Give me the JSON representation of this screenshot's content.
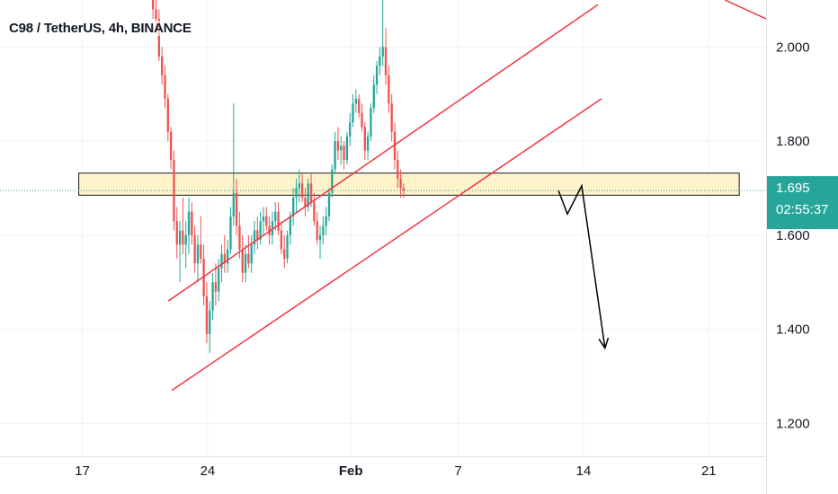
{
  "header": {
    "title": "C98 / TetherUS, 4h, BINANCE"
  },
  "colors": {
    "up": "#26a69a",
    "down": "#ef5350",
    "channel": "#f23645",
    "zone_fill": "#fff3cc",
    "zone_border": "#131722",
    "badge": "#26a69a",
    "arrow": "#000000",
    "grid": "#f0f3fa"
  },
  "chart_data": {
    "type": "candlestick",
    "symbol": "C98 / TetherUS",
    "interval": "4h",
    "exchange": "BINANCE",
    "x_axis": {
      "ticks": [
        "17",
        "24",
        "Feb",
        "7",
        "14",
        "21"
      ],
      "tick_days": [
        0,
        7,
        15,
        21,
        28,
        35
      ],
      "range_days": [
        -4.6,
        38.2
      ]
    },
    "y_axis": {
      "ticks": [
        "1.200",
        "1.400",
        "1.600",
        "1.800",
        "2.000"
      ],
      "tick_values": [
        1.2,
        1.4,
        1.6,
        1.8,
        2.0
      ],
      "range": [
        1.13,
        2.1
      ],
      "position": "right"
    },
    "last_price": {
      "value": "1.695",
      "countdown": "02:55:37",
      "price": 1.695
    },
    "support_zone": {
      "from_day": -0.2,
      "to_day": 36.7,
      "low": 1.685,
      "high": 1.732
    },
    "channel_lines": [
      {
        "name": "",
        "points": [
          [
            4.8,
            1.46
          ],
          [
            28.8,
            2.09
          ]
        ]
      },
      {
        "name": "",
        "points": [
          [
            5.0,
            1.27
          ],
          [
            29.0,
            1.89
          ]
        ]
      },
      {
        "name": "",
        "points": [
          [
            35.9,
            2.1
          ],
          [
            38.2,
            2.06
          ]
        ]
      }
    ],
    "projection_path": [
      [
        26.6,
        1.695
      ],
      [
        27.1,
        1.645
      ],
      [
        27.9,
        1.705
      ],
      [
        29.2,
        1.36
      ]
    ],
    "candles_ohlc_from_day": 3.95,
    "candles_ohlc_step_days": 0.1667,
    "candles_ohlc": [
      [
        2.12,
        2.15,
        2.06,
        2.08
      ],
      [
        2.08,
        2.12,
        2.03,
        2.06
      ],
      [
        2.06,
        2.08,
        1.97,
        1.98
      ],
      [
        1.98,
        2.0,
        1.92,
        1.94
      ],
      [
        1.94,
        1.96,
        1.87,
        1.89
      ],
      [
        1.89,
        1.9,
        1.8,
        1.82
      ],
      [
        1.82,
        1.83,
        1.74,
        1.76
      ],
      [
        1.76,
        1.78,
        1.61,
        1.63
      ],
      [
        1.63,
        1.66,
        1.55,
        1.58
      ],
      [
        1.58,
        1.63,
        1.5,
        1.61
      ],
      [
        1.61,
        1.68,
        1.56,
        1.58
      ],
      [
        1.58,
        1.63,
        1.53,
        1.6
      ],
      [
        1.6,
        1.68,
        1.56,
        1.65
      ],
      [
        1.65,
        1.67,
        1.58,
        1.6
      ],
      [
        1.6,
        1.62,
        1.52,
        1.54
      ],
      [
        1.54,
        1.6,
        1.5,
        1.58
      ],
      [
        1.58,
        1.64,
        1.54,
        1.55
      ],
      [
        1.55,
        1.58,
        1.45,
        1.47
      ],
      [
        1.47,
        1.5,
        1.37,
        1.39
      ],
      [
        1.39,
        1.46,
        1.35,
        1.44
      ],
      [
        1.44,
        1.52,
        1.42,
        1.5
      ],
      [
        1.5,
        1.54,
        1.45,
        1.48
      ],
      [
        1.48,
        1.55,
        1.46,
        1.53
      ],
      [
        1.53,
        1.58,
        1.5,
        1.56
      ],
      [
        1.56,
        1.6,
        1.52,
        1.54
      ],
      [
        1.54,
        1.59,
        1.52,
        1.57
      ],
      [
        1.57,
        1.66,
        1.56,
        1.64
      ],
      [
        1.64,
        1.88,
        1.62,
        1.69
      ],
      [
        1.69,
        1.72,
        1.6,
        1.62
      ],
      [
        1.62,
        1.65,
        1.55,
        1.57
      ],
      [
        1.57,
        1.6,
        1.5,
        1.52
      ],
      [
        1.52,
        1.58,
        1.5,
        1.56
      ],
      [
        1.56,
        1.6,
        1.53,
        1.54
      ],
      [
        1.54,
        1.6,
        1.52,
        1.58
      ],
      [
        1.58,
        1.63,
        1.56,
        1.61
      ],
      [
        1.61,
        1.64,
        1.57,
        1.59
      ],
      [
        1.59,
        1.65,
        1.58,
        1.63
      ],
      [
        1.63,
        1.66,
        1.6,
        1.64
      ],
      [
        1.64,
        1.66,
        1.61,
        1.62
      ],
      [
        1.62,
        1.64,
        1.58,
        1.6
      ],
      [
        1.6,
        1.65,
        1.58,
        1.63
      ],
      [
        1.63,
        1.67,
        1.61,
        1.65
      ],
      [
        1.65,
        1.67,
        1.6,
        1.61
      ],
      [
        1.61,
        1.63,
        1.56,
        1.57
      ],
      [
        1.57,
        1.6,
        1.53,
        1.55
      ],
      [
        1.55,
        1.61,
        1.54,
        1.6
      ],
      [
        1.6,
        1.65,
        1.58,
        1.64
      ],
      [
        1.64,
        1.7,
        1.62,
        1.68
      ],
      [
        1.68,
        1.72,
        1.65,
        1.7
      ],
      [
        1.7,
        1.74,
        1.67,
        1.71
      ],
      [
        1.71,
        1.73,
        1.67,
        1.68
      ],
      [
        1.68,
        1.7,
        1.64,
        1.66
      ],
      [
        1.66,
        1.72,
        1.65,
        1.71
      ],
      [
        1.71,
        1.73,
        1.66,
        1.67
      ],
      [
        1.67,
        1.69,
        1.62,
        1.63
      ],
      [
        1.63,
        1.65,
        1.58,
        1.59
      ],
      [
        1.59,
        1.62,
        1.55,
        1.6
      ],
      [
        1.6,
        1.64,
        1.58,
        1.62
      ],
      [
        1.62,
        1.66,
        1.6,
        1.64
      ],
      [
        1.64,
        1.7,
        1.63,
        1.69
      ],
      [
        1.69,
        1.75,
        1.68,
        1.74
      ],
      [
        1.74,
        1.82,
        1.73,
        1.8
      ],
      [
        1.8,
        1.83,
        1.76,
        1.78
      ],
      [
        1.78,
        1.81,
        1.75,
        1.79
      ],
      [
        1.79,
        1.8,
        1.74,
        1.76
      ],
      [
        1.76,
        1.82,
        1.75,
        1.81
      ],
      [
        1.81,
        1.86,
        1.79,
        1.84
      ],
      [
        1.84,
        1.9,
        1.83,
        1.88
      ],
      [
        1.88,
        1.91,
        1.86,
        1.89
      ],
      [
        1.89,
        1.9,
        1.85,
        1.86
      ],
      [
        1.86,
        1.88,
        1.82,
        1.83
      ],
      [
        1.83,
        1.84,
        1.76,
        1.78
      ],
      [
        1.78,
        1.82,
        1.76,
        1.81
      ],
      [
        1.81,
        1.88,
        1.8,
        1.87
      ],
      [
        1.87,
        1.94,
        1.86,
        1.92
      ],
      [
        1.92,
        1.97,
        1.9,
        1.96
      ],
      [
        1.96,
        2.0,
        1.94,
        1.98
      ],
      [
        1.98,
        2.11,
        1.96,
        2.0
      ],
      [
        2.0,
        2.04,
        1.92,
        1.94
      ],
      [
        1.94,
        1.96,
        1.86,
        1.88
      ],
      [
        1.88,
        1.9,
        1.8,
        1.82
      ],
      [
        1.82,
        1.84,
        1.74,
        1.76
      ],
      [
        1.76,
        1.78,
        1.7,
        1.72
      ],
      [
        1.72,
        1.74,
        1.68,
        1.7
      ],
      [
        1.7,
        1.71,
        1.68,
        1.695
      ]
    ]
  }
}
